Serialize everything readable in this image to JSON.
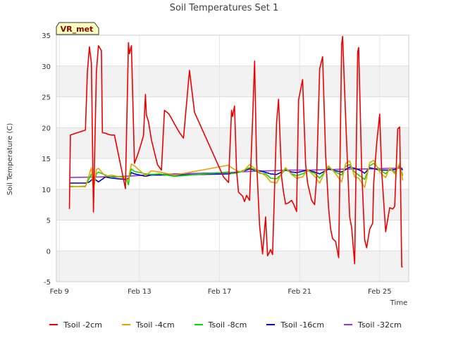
{
  "chart_data": {
    "type": "line",
    "title": "Soil Temperatures Set 1",
    "xlabel": "Time",
    "ylabel": "Soil Temperature (C)",
    "badge": "VR_met",
    "ylim": [
      -5,
      35
    ],
    "yticks": [
      -5,
      0,
      5,
      10,
      15,
      20,
      25,
      30,
      35
    ],
    "xlim": [
      8.85,
      26.45
    ],
    "xticks": [
      {
        "label": "Feb 9",
        "day": 9
      },
      {
        "label": "Feb 13",
        "day": 13
      },
      {
        "label": "Feb 17",
        "day": 17
      },
      {
        "label": "Feb 21",
        "day": 21
      },
      {
        "label": "Feb 25",
        "day": 25
      }
    ],
    "x_unit": "day of February",
    "series": [
      {
        "name": "Tsoil -2cm",
        "color": "#ee0000",
        "x": [
          9.5,
          9.55,
          10.3,
          10.4,
          10.5,
          10.6,
          10.7,
          10.85,
          10.95,
          11.1,
          11.15,
          11.3,
          11.45,
          11.6,
          11.75,
          12.3,
          12.35,
          12.45,
          12.5,
          12.6,
          12.75,
          12.9,
          13.05,
          13.2,
          13.3,
          13.35,
          13.45,
          13.6,
          13.75,
          13.9,
          14.1,
          14.25,
          14.45,
          14.6,
          14.75,
          15.0,
          15.2,
          15.5,
          15.75,
          17.2,
          17.45,
          17.6,
          17.65,
          17.75,
          17.85,
          17.95,
          18.15,
          18.25,
          18.35,
          18.5,
          18.65,
          18.75,
          18.85,
          19.0,
          19.15,
          19.3,
          19.4,
          19.55,
          19.65,
          19.85,
          19.95,
          20.1,
          20.2,
          20.3,
          20.45,
          20.6,
          20.7,
          20.85,
          20.95,
          21.15,
          21.3,
          21.4,
          21.6,
          21.75,
          21.85,
          22.0,
          22.15,
          22.3,
          22.45,
          22.55,
          22.65,
          22.8,
          22.95,
          23.1,
          23.15,
          23.3,
          23.5,
          23.6,
          23.75,
          23.9,
          23.95,
          24.1,
          24.25,
          24.35,
          24.5,
          24.65,
          24.7,
          24.85,
          25.0,
          25.1,
          25.3,
          25.5,
          25.65,
          25.75,
          25.9,
          26.0,
          26.1,
          26.15
        ],
        "values": [
          6.8,
          18.8,
          19.6,
          29,
          33.1,
          30.5,
          6.3,
          29,
          33.3,
          32.5,
          19.2,
          19.1,
          18.9,
          18.8,
          18.8,
          10.1,
          18,
          33.8,
          32,
          33.3,
          14.2,
          15.5,
          17,
          18.7,
          25.4,
          22,
          21,
          18,
          16,
          14,
          13.1,
          22.8,
          22.3,
          21.5,
          20.6,
          19.2,
          18.3,
          29.3,
          22.5,
          12,
          11.1,
          22.8,
          21.8,
          23.5,
          13,
          9.5,
          8.9,
          8,
          9,
          8.2,
          21.1,
          30.8,
          14.5,
          4.1,
          -0.5,
          5.5,
          -0.8,
          0.2,
          -0.6,
          20.8,
          24.6,
          12,
          9.5,
          7.6,
          7.8,
          8.2,
          7.6,
          6.4,
          24.5,
          27.8,
          14.1,
          11,
          8.2,
          7.5,
          11.9,
          29.5,
          31.5,
          15.5,
          6.8,
          3.5,
          2,
          1.5,
          -1.1,
          33.5,
          34.8,
          21.6,
          5.5,
          3.8,
          -2.1,
          32.3,
          33,
          13.4,
          1.8,
          0.5,
          3.5,
          4.5,
          11,
          17.4,
          22.2,
          13,
          3.1,
          7,
          6.8,
          7.2,
          19.8,
          20.1,
          -2.6,
          -2.6
        ]
      },
      {
        "name": "Tsoil -4cm",
        "color": "#f0a000",
        "x": [
          9.5,
          10.3,
          10.6,
          10.7,
          10.85,
          10.95,
          11.3,
          11.6,
          12.3,
          12.45,
          12.5,
          12.6,
          12.75,
          13.3,
          13.6,
          14.0,
          14.75,
          17.45,
          17.6,
          17.85,
          18.15,
          18.5,
          18.75,
          19.0,
          19.3,
          19.55,
          19.85,
          20.1,
          20.3,
          20.6,
          20.85,
          21.15,
          21.4,
          21.75,
          22.0,
          22.3,
          22.45,
          22.8,
          23.1,
          23.3,
          23.5,
          23.75,
          23.95,
          24.25,
          24.5,
          24.7,
          25.0,
          25.3,
          25.5,
          25.75,
          26.0,
          26.15
        ],
        "values": [
          10.5,
          10.4,
          13.5,
          9.8,
          13.2,
          13.4,
          12.1,
          12.3,
          11.8,
          11.5,
          12.6,
          14.1,
          13.8,
          12.2,
          13,
          12.8,
          12.3,
          13.9,
          13.5,
          13,
          12.8,
          14,
          13.4,
          12.8,
          12.2,
          11.2,
          11,
          12.6,
          13.5,
          12.4,
          11.8,
          12,
          13.2,
          12.1,
          11,
          13.1,
          13.8,
          12.5,
          11.2,
          14.2,
          14.6,
          12,
          11.8,
          10.3,
          14.3,
          14.7,
          12.8,
          11.9,
          13.5,
          12.5,
          14.2,
          11.4
        ]
      },
      {
        "name": "Tsoil -8cm",
        "color": "#00dd00",
        "x": [
          9.5,
          10.3,
          10.6,
          10.7,
          10.85,
          10.95,
          11.3,
          11.6,
          12.3,
          12.45,
          12.5,
          12.6,
          12.75,
          13.3,
          13.6,
          14.0,
          14.75,
          17.45,
          17.6,
          17.85,
          18.15,
          18.5,
          18.75,
          19.0,
          19.3,
          19.55,
          19.85,
          20.1,
          20.3,
          20.6,
          20.85,
          21.15,
          21.4,
          21.75,
          22.0,
          22.3,
          22.45,
          22.8,
          23.1,
          23.3,
          23.5,
          23.75,
          23.95,
          24.25,
          24.5,
          24.7,
          25.0,
          25.3,
          25.5,
          25.75,
          26.0,
          26.15
        ],
        "values": [
          10.4,
          10.5,
          12.5,
          10.5,
          12.5,
          12.8,
          12.3,
          11.9,
          12.1,
          10.7,
          12.1,
          13.3,
          12.9,
          12.5,
          12.4,
          12.5,
          12.1,
          12.8,
          12.6,
          12.6,
          13,
          13.5,
          13.2,
          12.6,
          12.5,
          11.8,
          11.7,
          12.5,
          13.3,
          12.5,
          12.2,
          12.5,
          13,
          12.6,
          11.8,
          13,
          13.6,
          12.8,
          12.3,
          13.7,
          14,
          12.8,
          12.3,
          11.6,
          13.8,
          14.2,
          13.2,
          12.5,
          13.3,
          12.8,
          13.9,
          12.2
        ]
      },
      {
        "name": "Tsoil -16cm",
        "color": "#0000cc",
        "x": [
          9.5,
          10.3,
          10.5,
          10.7,
          10.95,
          11.3,
          11.6,
          12.3,
          12.45,
          12.6,
          12.75,
          13.3,
          13.6,
          14.75,
          17.45,
          17.85,
          18.15,
          18.5,
          18.75,
          19.0,
          19.55,
          19.85,
          20.3,
          20.6,
          20.85,
          21.4,
          21.75,
          22.0,
          22.45,
          22.8,
          23.1,
          23.5,
          23.75,
          24.0,
          24.25,
          24.5,
          25.0,
          25.5,
          25.75,
          26.0,
          26.15
        ],
        "values": [
          11,
          11,
          11.2,
          11.8,
          11.2,
          12,
          11.8,
          11.6,
          11.8,
          12.7,
          12.5,
          12.1,
          12.3,
          12.3,
          12.5,
          12.7,
          12.9,
          13.3,
          13.1,
          13,
          12.5,
          12.4,
          13.1,
          12.8,
          12.7,
          13.1,
          12.8,
          12.5,
          13.3,
          13,
          12.8,
          13.6,
          13.4,
          13.1,
          12.6,
          13.5,
          13.1,
          13.1,
          13.2,
          13.7,
          13.1
        ]
      },
      {
        "name": "Tsoil -32cm",
        "color": "#9a33e6",
        "x": [
          9.5,
          11.0,
          12.3,
          13.3,
          14.75,
          17.45,
          18.5,
          19.5,
          20.5,
          21.5,
          22.5,
          23.5,
          24.5,
          25.5,
          26.15
        ],
        "values": [
          11.9,
          12,
          12.1,
          12.3,
          12.5,
          12.7,
          12.9,
          13,
          13.1,
          13.1,
          13.2,
          13.3,
          13.3,
          13.4,
          13.4
        ]
      }
    ],
    "grid": true,
    "legend_position": "bottom"
  }
}
